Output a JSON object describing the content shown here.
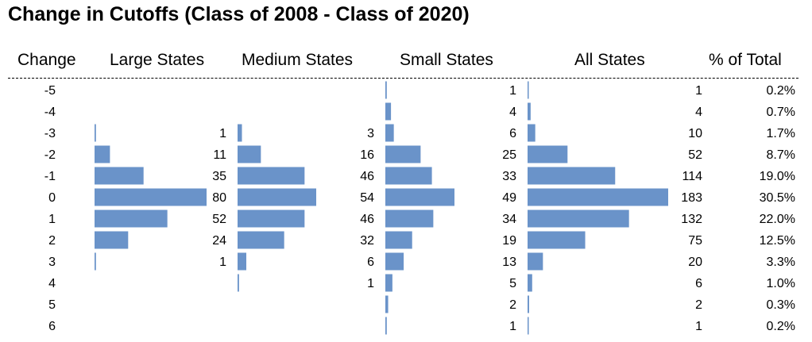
{
  "title": "Change in Cutoffs (Class of 2008 - Class of 2020)",
  "headers": {
    "change": "Change",
    "large": "Large States",
    "medium": "Medium States",
    "small": "Small States",
    "all": "All States",
    "pct": "% of Total"
  },
  "colors": {
    "bar": "#6A93C9"
  },
  "chart_data": {
    "type": "bar",
    "title": "Change in Cutoffs (Class of 2008 - Class of 2020)",
    "categories": [
      "-5",
      "-4",
      "-3",
      "-2",
      "-1",
      "0",
      "1",
      "2",
      "3",
      "4",
      "5",
      "6"
    ],
    "series": [
      {
        "name": "Large States",
        "values": [
          null,
          null,
          1,
          11,
          35,
          80,
          52,
          24,
          1,
          null,
          null,
          null
        ]
      },
      {
        "name": "Medium States",
        "values": [
          null,
          null,
          3,
          16,
          46,
          54,
          46,
          32,
          6,
          1,
          null,
          null
        ]
      },
      {
        "name": "Small States",
        "values": [
          1,
          4,
          6,
          25,
          33,
          49,
          34,
          19,
          13,
          5,
          2,
          1
        ]
      },
      {
        "name": "All States",
        "values": [
          1,
          4,
          10,
          52,
          114,
          183,
          132,
          75,
          20,
          6,
          2,
          1
        ]
      }
    ],
    "pct_of_total": [
      "0.2%",
      "0.7%",
      "1.7%",
      "8.7%",
      "19.0%",
      "30.5%",
      "22.0%",
      "12.5%",
      "3.3%",
      "1.0%",
      "0.3%",
      "0.2%"
    ]
  }
}
